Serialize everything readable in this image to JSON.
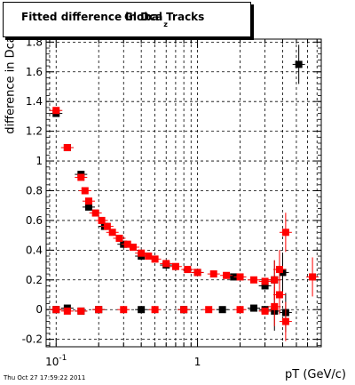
{
  "title": {
    "main": "Fitted difference in Dca",
    "sub": "z",
    "tail": "Global Tracks"
  },
  "timestamp": "Thu Oct 27 17:59:22 2011",
  "colors": {
    "series_a": "#000000",
    "series_b": "#ff0000",
    "frame": "#000000",
    "grid": "#000000"
  },
  "chart_data": {
    "type": "scatter",
    "title": "Fitted difference in Dca z Global Tracks",
    "xlabel": "pT (GeV/c)",
    "ylabel": "difference in Dca",
    "xscale": "log",
    "xlim": [
      0.085,
      7.5
    ],
    "ylim": [
      -0.25,
      1.82
    ],
    "grid": true,
    "x_tick_labels": [
      {
        "value": 0.1,
        "base": "10",
        "exp": "-1"
      },
      {
        "value": 1,
        "base": "1",
        "exp": ""
      }
    ],
    "y_ticks": [
      -0.2,
      0,
      0.2,
      0.4,
      0.6,
      0.8,
      1,
      1.2,
      1.4,
      1.6,
      1.8
    ],
    "series": [
      {
        "color": "black",
        "points": [
          [
            0.1,
            1.32
          ],
          [
            0.12,
            1.09
          ],
          [
            0.15,
            0.91
          ],
          [
            0.17,
            0.69
          ],
          [
            0.22,
            0.56
          ],
          [
            0.3,
            0.44
          ],
          [
            0.4,
            0.36
          ],
          [
            0.6,
            0.3
          ],
          [
            1.0,
            0.25
          ],
          [
            1.8,
            0.22
          ],
          [
            3.0,
            0.16
          ],
          [
            3.5,
            0.2
          ],
          [
            4.0,
            0.25
          ],
          [
            5.2,
            1.65
          ],
          [
            0.1,
            0.0
          ],
          [
            0.12,
            0.01
          ],
          [
            0.15,
            -0.01
          ],
          [
            0.2,
            0.0
          ],
          [
            0.4,
            0.0
          ],
          [
            0.8,
            0.0
          ],
          [
            1.5,
            0.0
          ],
          [
            2.5,
            0.01
          ],
          [
            3.0,
            0.0
          ],
          [
            3.5,
            -0.01
          ],
          [
            4.2,
            -0.02
          ]
        ]
      },
      {
        "color": "red",
        "points": [
          [
            0.1,
            1.34
          ],
          [
            0.12,
            1.09
          ],
          [
            0.15,
            0.89
          ],
          [
            0.16,
            0.8
          ],
          [
            0.17,
            0.73
          ],
          [
            0.19,
            0.65
          ],
          [
            0.21,
            0.6
          ],
          [
            0.23,
            0.56
          ],
          [
            0.25,
            0.52
          ],
          [
            0.28,
            0.48
          ],
          [
            0.32,
            0.44
          ],
          [
            0.35,
            0.42
          ],
          [
            0.4,
            0.38
          ],
          [
            0.45,
            0.36
          ],
          [
            0.5,
            0.34
          ],
          [
            0.6,
            0.31
          ],
          [
            0.7,
            0.29
          ],
          [
            0.85,
            0.27
          ],
          [
            1.0,
            0.25
          ],
          [
            1.3,
            0.24
          ],
          [
            1.6,
            0.23
          ],
          [
            2.0,
            0.22
          ],
          [
            2.5,
            0.2
          ],
          [
            3.0,
            0.19
          ],
          [
            3.5,
            0.2
          ],
          [
            3.8,
            0.27
          ],
          [
            4.2,
            0.52
          ],
          [
            6.5,
            0.22
          ],
          [
            0.1,
            0.0
          ],
          [
            0.12,
            -0.01
          ],
          [
            0.15,
            -0.01
          ],
          [
            0.2,
            0.0
          ],
          [
            0.3,
            0.0
          ],
          [
            0.5,
            0.0
          ],
          [
            0.8,
            0.0
          ],
          [
            1.2,
            0.0
          ],
          [
            2.0,
            0.0
          ],
          [
            3.0,
            -0.01
          ],
          [
            3.5,
            0.02
          ],
          [
            3.8,
            0.1
          ],
          [
            4.2,
            -0.08
          ]
        ]
      }
    ]
  }
}
